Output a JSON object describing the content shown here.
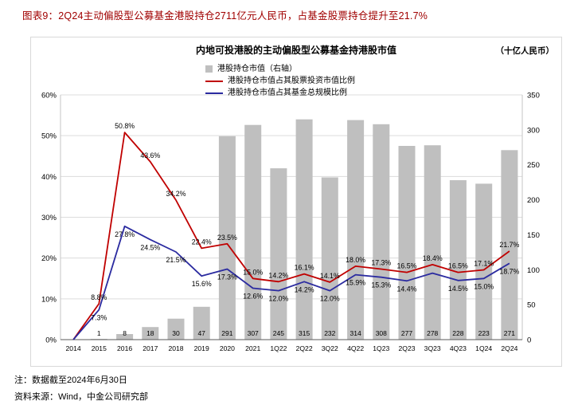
{
  "header": {
    "title": "图表9：2Q24主动偏股型公募基金港股持仓2711亿元人民币，占基金股票持仓提升至21.7%"
  },
  "chart": {
    "title": "内地可投港股的主动偏股型公募基金持港股市值",
    "unit_label": "（十亿人民币）",
    "legend": [
      {
        "label": "港股持仓市值（右轴）",
        "marker": "bar",
        "color": "#BFBFBF"
      },
      {
        "label": "港股持仓市值占其股票投资市值比例",
        "marker": "line",
        "color": "#C00000"
      },
      {
        "label": "港股持仓市值占其基金总规模比例",
        "marker": "line",
        "color": "#2B2BA0"
      }
    ]
  },
  "chart_data": {
    "type": "bar",
    "title": "内地可投港股的主动偏股型公募基金持港股市值",
    "unit": "十亿人民币",
    "grid": true,
    "legend_position": "top-center",
    "categories": [
      "2014",
      "2015",
      "2016",
      "2017",
      "2018",
      "2019",
      "2020",
      "2021",
      "1Q22",
      "2Q22",
      "3Q22",
      "4Q22",
      "1Q23",
      "2Q23",
      "3Q23",
      "4Q23",
      "1Q24",
      "2Q24"
    ],
    "left_axis": {
      "min": 0,
      "max": 60,
      "ticks": [
        "0%",
        "10%",
        "20%",
        "30%",
        "40%",
        "50%",
        "60%"
      ]
    },
    "right_axis": {
      "min": 0,
      "max": 350,
      "ticks": [
        "0",
        "50",
        "100",
        "150",
        "200",
        "250",
        "300",
        "350"
      ]
    },
    "series": [
      {
        "id": "hk-holdings-bar",
        "name": "港股持仓市值（右轴）",
        "type": "bar",
        "axis": "right",
        "color": "#BFBFBF",
        "values": [
          0,
          1,
          8,
          18,
          30,
          47,
          291,
          307,
          245,
          315,
          232,
          314,
          308,
          277,
          278,
          228,
          223,
          271
        ],
        "labels": [
          "",
          "1",
          "8",
          "18",
          "30",
          "47",
          "291",
          "307",
          "245",
          "315",
          "232",
          "314",
          "308",
          "277",
          "278",
          "228",
          "223",
          "271"
        ]
      },
      {
        "id": "stock-ratio-line",
        "name": "港股持仓市值占其股票投资市值比例",
        "type": "line",
        "axis": "left",
        "color": "#C00000",
        "values": [
          0,
          8.8,
          50.8,
          43.6,
          34.2,
          22.4,
          23.5,
          15.0,
          14.2,
          16.1,
          14.1,
          18.0,
          17.3,
          16.5,
          18.4,
          16.5,
          17.1,
          21.7
        ],
        "labels": [
          "",
          "8.8%",
          "50.8%",
          "43.6%",
          "34.2%",
          "22.4%",
          "23.5%",
          "15.0%",
          "14.2%",
          "16.1%",
          "14.1%",
          "18.0%",
          "17.3%",
          "16.5%",
          "18.4%",
          "16.5%",
          "17.1%",
          "21.7%"
        ]
      },
      {
        "id": "aum-ratio-line",
        "name": "港股持仓市值占其基金总规模比例",
        "type": "line",
        "axis": "left",
        "color": "#2B2BA0",
        "values": [
          0,
          7.3,
          27.8,
          24.5,
          21.5,
          15.6,
          17.3,
          12.6,
          12.0,
          14.2,
          12.0,
          15.9,
          15.3,
          14.4,
          16.3,
          14.5,
          15.0,
          18.7
        ],
        "labels": [
          "",
          "7.3%",
          "27.8%",
          "24.5%",
          "21.5%",
          "15.6%",
          "17.3%",
          "12.6%",
          "12.0%",
          "14.2%",
          "12.0%",
          "15.9%",
          "15.3%",
          "14.4%",
          "",
          "14.5%",
          "15.0%",
          "18.7%"
        ]
      }
    ]
  },
  "notes": {
    "note": "注：数据截至2024年6月30日",
    "source": "资料来源：Wind，中金公司研究部"
  }
}
